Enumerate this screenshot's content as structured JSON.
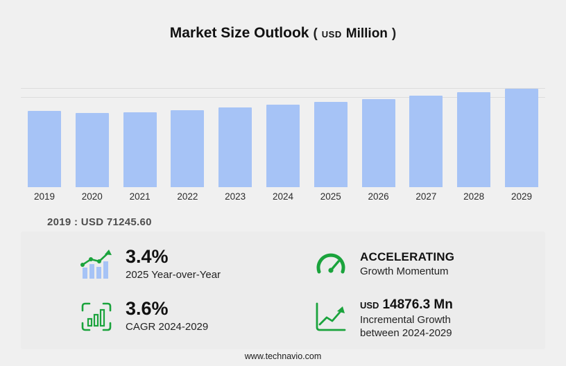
{
  "title": {
    "main": "Market Size Outlook",
    "paren_open": "(",
    "currency": "USD",
    "unit": "Million",
    "paren_close": ")"
  },
  "chart_data": {
    "type": "bar",
    "categories": [
      "2019",
      "2020",
      "2021",
      "2022",
      "2023",
      "2024",
      "2025",
      "2026",
      "2027",
      "2028",
      "2029"
    ],
    "values": [
      71245.6,
      68900.0,
      69800.0,
      72100.0,
      74400.0,
      76905.3,
      79520.1,
      82300.0,
      85300.0,
      88500.0,
      91781.6
    ],
    "title": "Market Size Outlook (USD Million)",
    "xlabel": "",
    "ylabel": "USD Million",
    "ylim": [
      0,
      95000
    ],
    "grid": "partial-top",
    "legend": "none",
    "base_year_label": "2019 : USD 71245.60"
  },
  "annotation": {
    "text": "2019 : USD  71245.60"
  },
  "stats": [
    {
      "icon": "yoy-bars-arrow-icon",
      "headline": "3.4%",
      "subtext": "2025 Year-over-Year"
    },
    {
      "icon": "speedometer-icon",
      "headline": "ACCELERATING",
      "subtext": "Growth Momentum"
    },
    {
      "icon": "cagr-chart-icon",
      "headline": "3.6%",
      "subtext": "CAGR 2024-2029"
    },
    {
      "icon": "incremental-growth-icon",
      "headline_prefix": "USD",
      "headline": "14876.3 Mn",
      "subtext": "Incremental Growth between 2024-2029"
    }
  ],
  "footer": {
    "url": "www.technavio.com"
  },
  "colors": {
    "bar": "#a6c3f6",
    "accent_green": "#1aa33c",
    "background": "#f0f0f0",
    "panel": "#ececec"
  }
}
